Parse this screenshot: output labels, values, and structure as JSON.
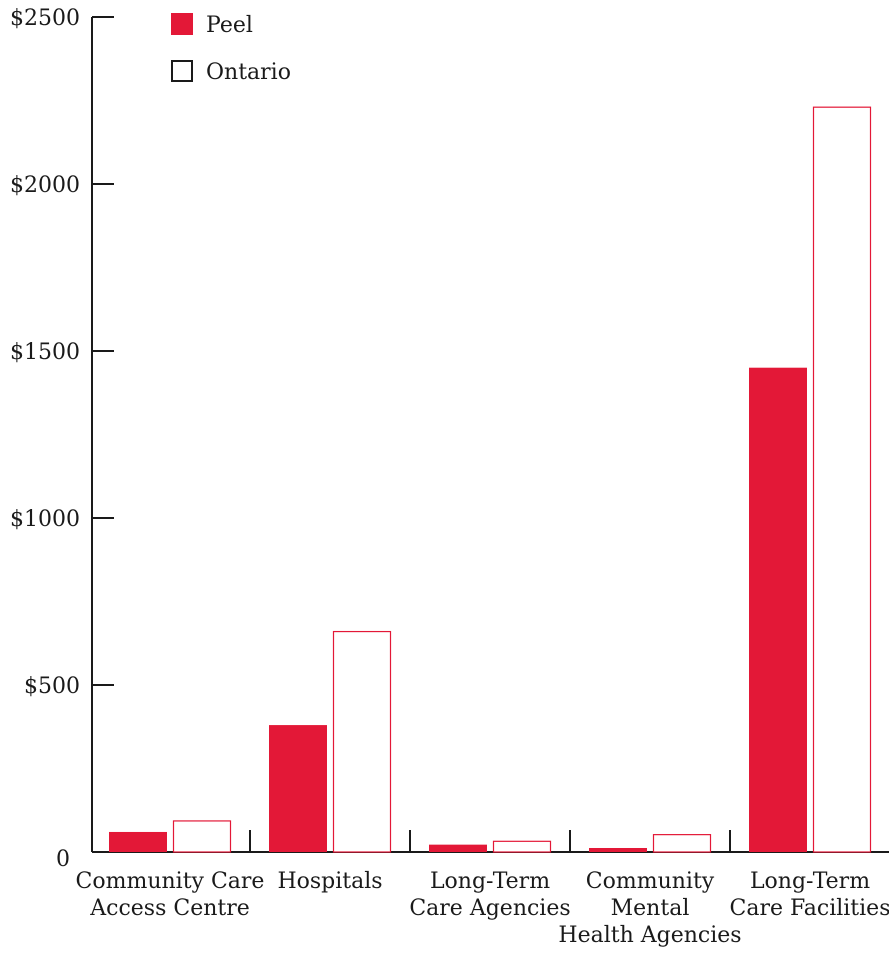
{
  "chart_data": {
    "type": "bar",
    "categories": [
      [
        "Community Care",
        "Access Centre"
      ],
      [
        "Hospitals"
      ],
      [
        "Long-Term",
        "Care Agencies"
      ],
      [
        "Community",
        "Mental",
        "Health Agencies"
      ],
      [
        "Long-Term",
        "Care Facilities"
      ]
    ],
    "series": [
      {
        "name": "Peel",
        "values": [
          60,
          380,
          22,
          12,
          1450
        ],
        "style": "filled"
      },
      {
        "name": "Ontario",
        "values": [
          93,
          660,
          32,
          52,
          2230
        ],
        "style": "outline"
      }
    ],
    "y_ticks": [
      {
        "value": 0,
        "label": "0"
      },
      {
        "value": 500,
        "label": "$500"
      },
      {
        "value": 1000,
        "label": "$1000"
      },
      {
        "value": 1500,
        "label": "$1500"
      },
      {
        "value": 2000,
        "label": "$2000"
      },
      {
        "value": 2500,
        "label": "$2500"
      }
    ],
    "ylim": [
      0,
      2500
    ],
    "grid": false,
    "legend_position": "top-left",
    "colors": {
      "bar": "#e31837",
      "axis": "#1a1a1a",
      "background": "#ffffff"
    }
  }
}
